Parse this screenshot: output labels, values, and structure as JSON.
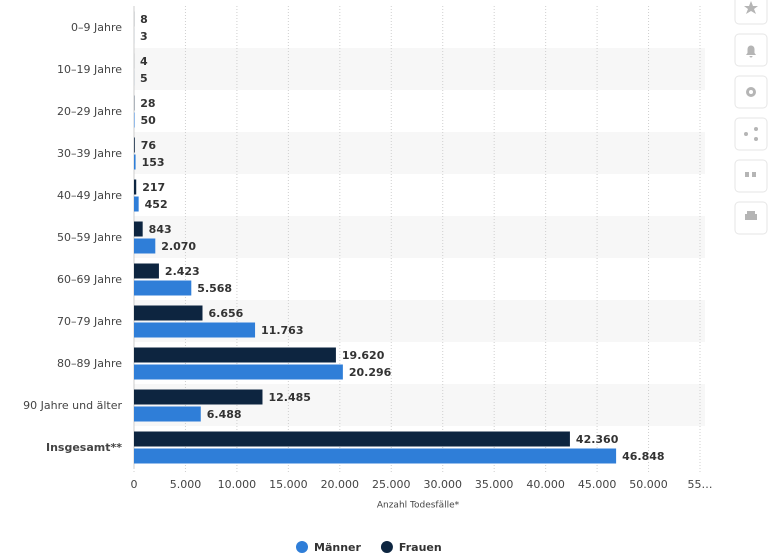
{
  "chart_data": {
    "type": "hbar",
    "categories": [
      "0–9 Jahre",
      "10–19 Jahre",
      "20–29 Jahre",
      "30–39 Jahre",
      "40–49 Jahre",
      "50–59 Jahre",
      "60–69 Jahre",
      "70–79 Jahre",
      "80–89 Jahre",
      "90 Jahre und älter",
      "Insgesamt**"
    ],
    "series": [
      {
        "name": "Männer",
        "color": "#2f7ed8",
        "values": [
          3,
          5,
          50,
          153,
          452,
          2070,
          5568,
          11763,
          20296,
          6488,
          46848
        ],
        "value_labels": [
          "3",
          "5",
          "50",
          "153",
          "452",
          "2.070",
          "5.568",
          "11.763",
          "20.296",
          "6.488",
          "46.848"
        ]
      },
      {
        "name": "Frauen",
        "color": "#0d2540",
        "values": [
          8,
          4,
          28,
          76,
          217,
          843,
          2423,
          6656,
          19620,
          12485,
          42360
        ],
        "value_labels": [
          "8",
          "4",
          "28",
          "76",
          "217",
          "843",
          "2.423",
          "6.656",
          "19.620",
          "12.485",
          "42.360"
        ]
      }
    ],
    "x_label": "Anzahl Todesfälle*",
    "xlim": [
      0,
      55000
    ],
    "xticks": [
      0,
      {
        "value": 5000,
        "label": "5.000"
      },
      {
        "value": 10000,
        "label": "10.000"
      },
      {
        "value": 15000,
        "label": "15.000"
      },
      {
        "value": 20000,
        "label": "20.000"
      },
      {
        "value": 25000,
        "label": "25.000"
      },
      {
        "value": 30000,
        "label": "30.000"
      },
      {
        "value": 35000,
        "label": "35.000"
      },
      {
        "value": 40000,
        "label": "40.000"
      },
      {
        "value": 45000,
        "label": "45.000"
      },
      {
        "value": 50000,
        "label": "50.000"
      },
      {
        "value": 55000,
        "label": "55…"
      }
    ],
    "grid": true
  }
}
